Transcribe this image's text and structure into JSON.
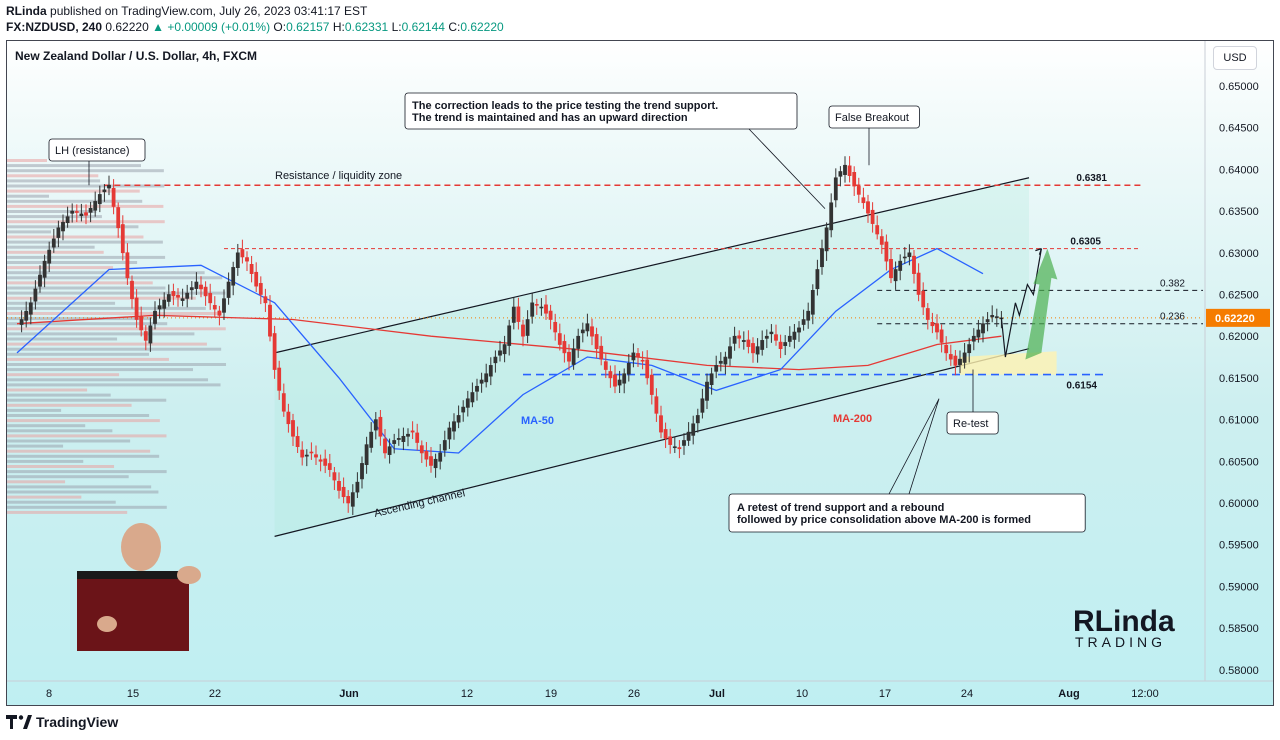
{
  "header": {
    "publisher": "RLinda",
    "published_text": "published on TradingView.com, July 26, 2023 03:41:17 EST",
    "symbol": "FX:NZDUSD, 240",
    "last": "0.62220",
    "change": "▲ +0.00009 (+0.01%)",
    "o_label": "O:",
    "o_val": "0.62157",
    "h_label": "H:",
    "h_val": "0.62331",
    "l_label": "L:",
    "l_val": "0.62144",
    "c_label": "C:",
    "c_val": "0.62220"
  },
  "chart": {
    "title": "New Zealand Dollar / U.S. Dollar, 4h, FXCM",
    "currency_button": "USD"
  },
  "annotations": {
    "correction": "The correction leads to the price testing the trend support.\nThe trend is maintained and has an upward direction",
    "false_breakout": "False Breakout",
    "lh": "LH (resistance)",
    "resistance_zone": "Resistance / liquidity zone",
    "retest": "Re-test",
    "retest_box": "A retest of trend support and a rebound\nfollowed by price consolidation above MA-200 is formed",
    "ascending_channel": "Ascending channel",
    "ma50": "MA-50",
    "ma200": "MA-200",
    "level_6381": "0.6381",
    "level_6305": "0.6305",
    "level_6154": "0.6154",
    "fib_382": "0.382",
    "fib_236": "0.236",
    "price_tag": "0.62220"
  },
  "brand": {
    "logo_top": "RLinda",
    "logo_bottom": "TRADING",
    "footer": "TradingView"
  },
  "colors": {
    "up": "#089981",
    "candle_red": "#e53935",
    "candle_dark": "#333333",
    "ma50": "#2962ff",
    "ma200": "#e53935",
    "resistance": "#e53935",
    "support": "#2962ff",
    "price_tag": "#f57c00"
  },
  "chart_data": {
    "type": "candlestick",
    "symbol": "NZDUSD",
    "timeframe": "4h",
    "y_axis_ticks": [
      "0.65000",
      "0.64500",
      "0.64000",
      "0.63500",
      "0.63000",
      "0.62500",
      "0.62000",
      "0.61500",
      "0.61000",
      "0.60500",
      "0.60000",
      "0.59500",
      "0.59000",
      "0.58500",
      "0.58000"
    ],
    "ylim": [
      0.5775,
      0.6525
    ],
    "x_axis_ticks": [
      "8",
      "15",
      "22",
      "Jun",
      "12",
      "19",
      "26",
      "Jul",
      "10",
      "17",
      "24",
      "Aug",
      "12:00"
    ],
    "levels": [
      {
        "label": "0.6381",
        "value": 0.6381,
        "style": "dashed-red"
      },
      {
        "label": "0.6305",
        "value": 0.6305,
        "style": "dashed-red"
      },
      {
        "label": "0.6154",
        "value": 0.6154,
        "style": "dashed-blue"
      },
      {
        "label": "0.382",
        "value": 0.6255,
        "style": "dashed-black"
      },
      {
        "label": "0.236",
        "value": 0.6215,
        "style": "dashed-black"
      }
    ],
    "close_price": 0.6222,
    "price_path": [
      [
        0,
        0.621
      ],
      [
        3,
        0.624
      ],
      [
        6,
        0.629
      ],
      [
        9,
        0.633
      ],
      [
        12,
        0.635
      ],
      [
        15,
        0.6345
      ],
      [
        18,
        0.637
      ],
      [
        20,
        0.6381
      ],
      [
        22,
        0.633
      ],
      [
        24,
        0.627
      ],
      [
        26,
        0.622
      ],
      [
        28,
        0.6195
      ],
      [
        30,
        0.623
      ],
      [
        33,
        0.625
      ],
      [
        36,
        0.6245
      ],
      [
        39,
        0.6265
      ],
      [
        42,
        0.624
      ],
      [
        44,
        0.6225
      ],
      [
        46,
        0.6265
      ],
      [
        48,
        0.63
      ],
      [
        50,
        0.629
      ],
      [
        52,
        0.626
      ],
      [
        54,
        0.624
      ],
      [
        56,
        0.616
      ],
      [
        58,
        0.611
      ],
      [
        60,
        0.608
      ],
      [
        62,
        0.6055
      ],
      [
        64,
        0.606
      ],
      [
        66,
        0.605
      ],
      [
        68,
        0.604
      ],
      [
        70,
        0.6015
      ],
      [
        72,
        0.6
      ],
      [
        74,
        0.6025
      ],
      [
        76,
        0.607
      ],
      [
        78,
        0.61
      ],
      [
        80,
        0.606
      ],
      [
        82,
        0.6075
      ],
      [
        84,
        0.608
      ],
      [
        86,
        0.6085
      ],
      [
        88,
        0.606
      ],
      [
        90,
        0.6045
      ],
      [
        92,
        0.606
      ],
      [
        94,
        0.609
      ],
      [
        96,
        0.6105
      ],
      [
        98,
        0.6125
      ],
      [
        100,
        0.614
      ],
      [
        102,
        0.6155
      ],
      [
        104,
        0.6175
      ],
      [
        106,
        0.619
      ],
      [
        108,
        0.6235
      ],
      [
        110,
        0.62
      ],
      [
        112,
        0.624
      ],
      [
        114,
        0.6235
      ],
      [
        116,
        0.622
      ],
      [
        118,
        0.619
      ],
      [
        120,
        0.617
      ],
      [
        122,
        0.62
      ],
      [
        124,
        0.6215
      ],
      [
        126,
        0.6185
      ],
      [
        128,
        0.616
      ],
      [
        130,
        0.614
      ],
      [
        132,
        0.6155
      ],
      [
        134,
        0.618
      ],
      [
        136,
        0.617
      ],
      [
        138,
        0.613
      ],
      [
        140,
        0.6085
      ],
      [
        142,
        0.607
      ],
      [
        144,
        0.6065
      ],
      [
        146,
        0.6085
      ],
      [
        148,
        0.6105
      ],
      [
        150,
        0.6145
      ],
      [
        152,
        0.6165
      ],
      [
        154,
        0.6175
      ],
      [
        156,
        0.62
      ],
      [
        158,
        0.6195
      ],
      [
        160,
        0.618
      ],
      [
        162,
        0.6195
      ],
      [
        164,
        0.6205
      ],
      [
        166,
        0.6185
      ],
      [
        168,
        0.62
      ],
      [
        170,
        0.621
      ],
      [
        172,
        0.623
      ],
      [
        174,
        0.628
      ],
      [
        176,
        0.633
      ],
      [
        178,
        0.639
      ],
      [
        180,
        0.6405
      ],
      [
        182,
        0.638
      ],
      [
        184,
        0.636
      ],
      [
        186,
        0.6335
      ],
      [
        188,
        0.631
      ],
      [
        190,
        0.627
      ],
      [
        192,
        0.629
      ],
      [
        194,
        0.63
      ],
      [
        196,
        0.625
      ],
      [
        198,
        0.622
      ],
      [
        200,
        0.6205
      ],
      [
        202,
        0.618
      ],
      [
        204,
        0.6165
      ],
      [
        206,
        0.618
      ],
      [
        208,
        0.62
      ],
      [
        210,
        0.6215
      ],
      [
        212,
        0.6225
      ],
      [
        214,
        0.6222
      ]
    ],
    "ma50_path": [
      [
        0,
        0.618
      ],
      [
        20,
        0.628
      ],
      [
        40,
        0.6285
      ],
      [
        56,
        0.624
      ],
      [
        70,
        0.615
      ],
      [
        82,
        0.6065
      ],
      [
        96,
        0.606
      ],
      [
        110,
        0.613
      ],
      [
        124,
        0.6175
      ],
      [
        138,
        0.6165
      ],
      [
        152,
        0.6135
      ],
      [
        166,
        0.616
      ],
      [
        178,
        0.623
      ],
      [
        190,
        0.628
      ],
      [
        200,
        0.6305
      ],
      [
        210,
        0.6275
      ]
    ],
    "ma200_path": [
      [
        0,
        0.6215
      ],
      [
        30,
        0.6225
      ],
      [
        60,
        0.622
      ],
      [
        90,
        0.62
      ],
      [
        120,
        0.6185
      ],
      [
        150,
        0.6165
      ],
      [
        170,
        0.616
      ],
      [
        185,
        0.6165
      ],
      [
        200,
        0.619
      ],
      [
        214,
        0.62
      ]
    ],
    "channel_upper": [
      [
        56,
        0.618
      ],
      [
        220,
        0.639
      ]
    ],
    "channel_lower": [
      [
        56,
        0.596
      ],
      [
        220,
        0.6185
      ]
    ]
  }
}
